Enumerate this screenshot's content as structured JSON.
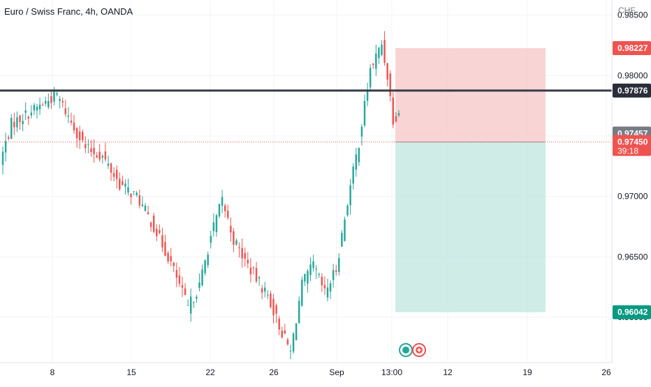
{
  "header": {
    "title": "Euro / Swiss Franc, 4h, OANDA",
    "currency": "CHF"
  },
  "colors": {
    "up": "#26a69a",
    "down": "#ef5350",
    "stop_zone": "#f7c5c7",
    "target_zone": "#bfe6dd",
    "resistance_line": "#363a45",
    "last_price_label": "#ef5350",
    "prev_close_label": "#787b86",
    "stop_label": "#ef5350",
    "target_label": "#089981",
    "resistance_label": "#2a2e39"
  },
  "chart_data": {
    "type": "candlestick",
    "title": "Euro / Swiss Franc, 4h, OANDA",
    "ylabel": "CHF",
    "ylim": [
      0.95625,
      0.98625
    ],
    "x_tick_labels": [
      "8",
      "15",
      "22",
      "26",
      "Sep",
      "13:00",
      "12",
      "19",
      "26"
    ],
    "y_tick_labels": [
      "0.98500",
      "0.98000",
      "0.97500",
      "0.97000",
      "0.96500",
      "0.96000"
    ],
    "grid": true,
    "candle_count": 140,
    "price_path": [
      [
        0,
        0.9728
      ],
      [
        4,
        0.976
      ],
      [
        8,
        0.9766
      ],
      [
        14,
        0.9775
      ],
      [
        20,
        0.9784
      ],
      [
        24,
        0.9766
      ],
      [
        30,
        0.974
      ],
      [
        36,
        0.9733
      ],
      [
        42,
        0.971
      ],
      [
        48,
        0.97
      ],
      [
        54,
        0.9675
      ],
      [
        60,
        0.9645
      ],
      [
        66,
        0.9608
      ],
      [
        70,
        0.9626
      ],
      [
        74,
        0.9667
      ],
      [
        78,
        0.9697
      ],
      [
        82,
        0.9664
      ],
      [
        86,
        0.9647
      ],
      [
        90,
        0.9632
      ],
      [
        94,
        0.9618
      ],
      [
        98,
        0.9593
      ],
      [
        102,
        0.9571
      ],
      [
        106,
        0.9627
      ],
      [
        110,
        0.9643
      ],
      [
        114,
        0.962
      ],
      [
        118,
        0.964
      ],
      [
        122,
        0.9696
      ],
      [
        126,
        0.9745
      ],
      [
        130,
        0.9805
      ],
      [
        134,
        0.9826
      ],
      [
        136,
        0.98
      ],
      [
        138,
        0.9764
      ],
      [
        140,
        0.977
      ]
    ],
    "session_break_label": "13:00",
    "resistance_level": 0.97876,
    "last_price": 0.9745,
    "prev_close": 0.97457,
    "countdown": "39:18",
    "position": {
      "entry": 0.9745,
      "stop": 0.98227,
      "target": 0.96042
    },
    "price_labels": {
      "stop": "0.98227",
      "resistance": "0.97876",
      "prev_close": "0.97457",
      "last_price": "0.97450",
      "target": "0.96042"
    }
  }
}
